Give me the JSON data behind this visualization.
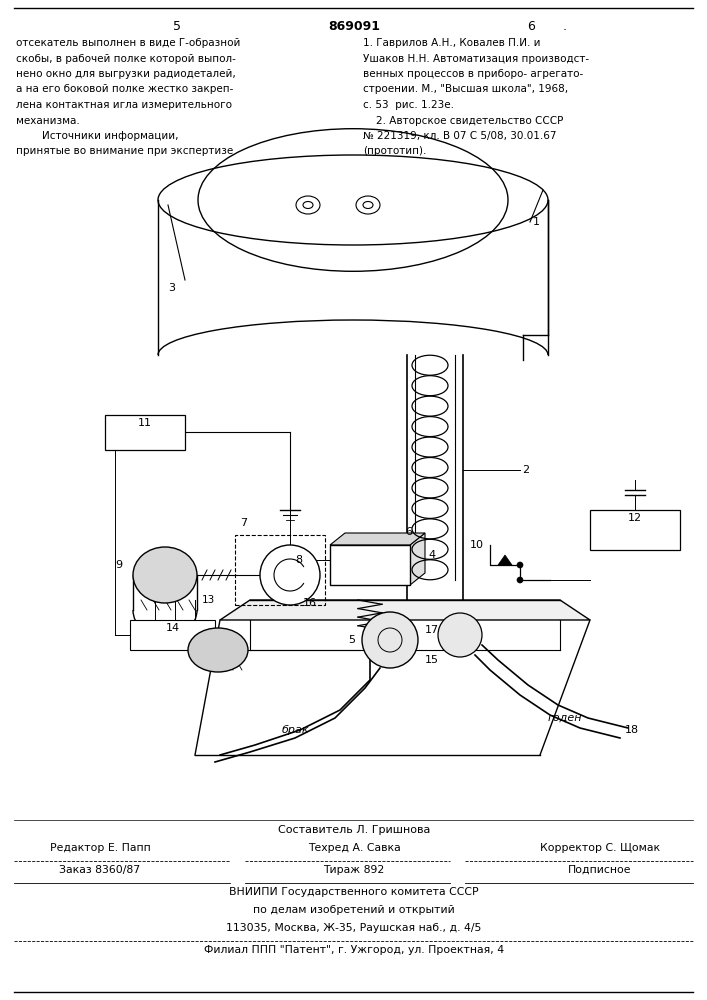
{
  "page_num_left": "5",
  "page_num_center": "869091",
  "page_num_right": "6",
  "left_text_lines": [
    "отсекатель выполнен в виде Г-образной",
    "скобы, в рабочей полке которой выпол-",
    "нено окно для выгрузки радиодеталей,",
    "а на его боковой полке жестко закреп-",
    "лена контактная игла измерительного",
    "механизма.",
    "        Источники информации,",
    "принятые во внимание при экспертизе"
  ],
  "right_text_lines": [
    "1. Гаврилов А.Н., Ковалев П.И. и",
    "Ушаков Н.Н. Автоматизация производст-",
    "венных процессов в приборо- агрегато-",
    "строении. М., \"Высшая школа\", 1968,",
    "с. 53  рис. 1.23е.",
    "    2. Авторское свидетельство СССР",
    "№ 221319, кл. В 07 С 5/08, 30.01.67",
    "(прототип)."
  ],
  "footer_sestavitel": "Составитель Л. Гришнова",
  "footer_line1_left": "Редактор Е. Папп",
  "footer_line1_mid": "Техред А. Савка",
  "footer_line1_right": "Корректор С. Щомак",
  "footer_line2_left": "Заказ 8360/87",
  "footer_line2_mid": "Тираж 892",
  "footer_line2_right": "Подписное",
  "footer_vniiipi": "ВНИИПИ Государственного комитета СССР",
  "footer_po": "по делам изобретений и открытий",
  "footer_addr": "113035, Москва, Ж-35, Раушская наб., д. 4/5",
  "footer_filial": "Филиал ППП \"Патент\", г. Ужгород, ул. Проектная, 4",
  "bg_color": "#ffffff"
}
